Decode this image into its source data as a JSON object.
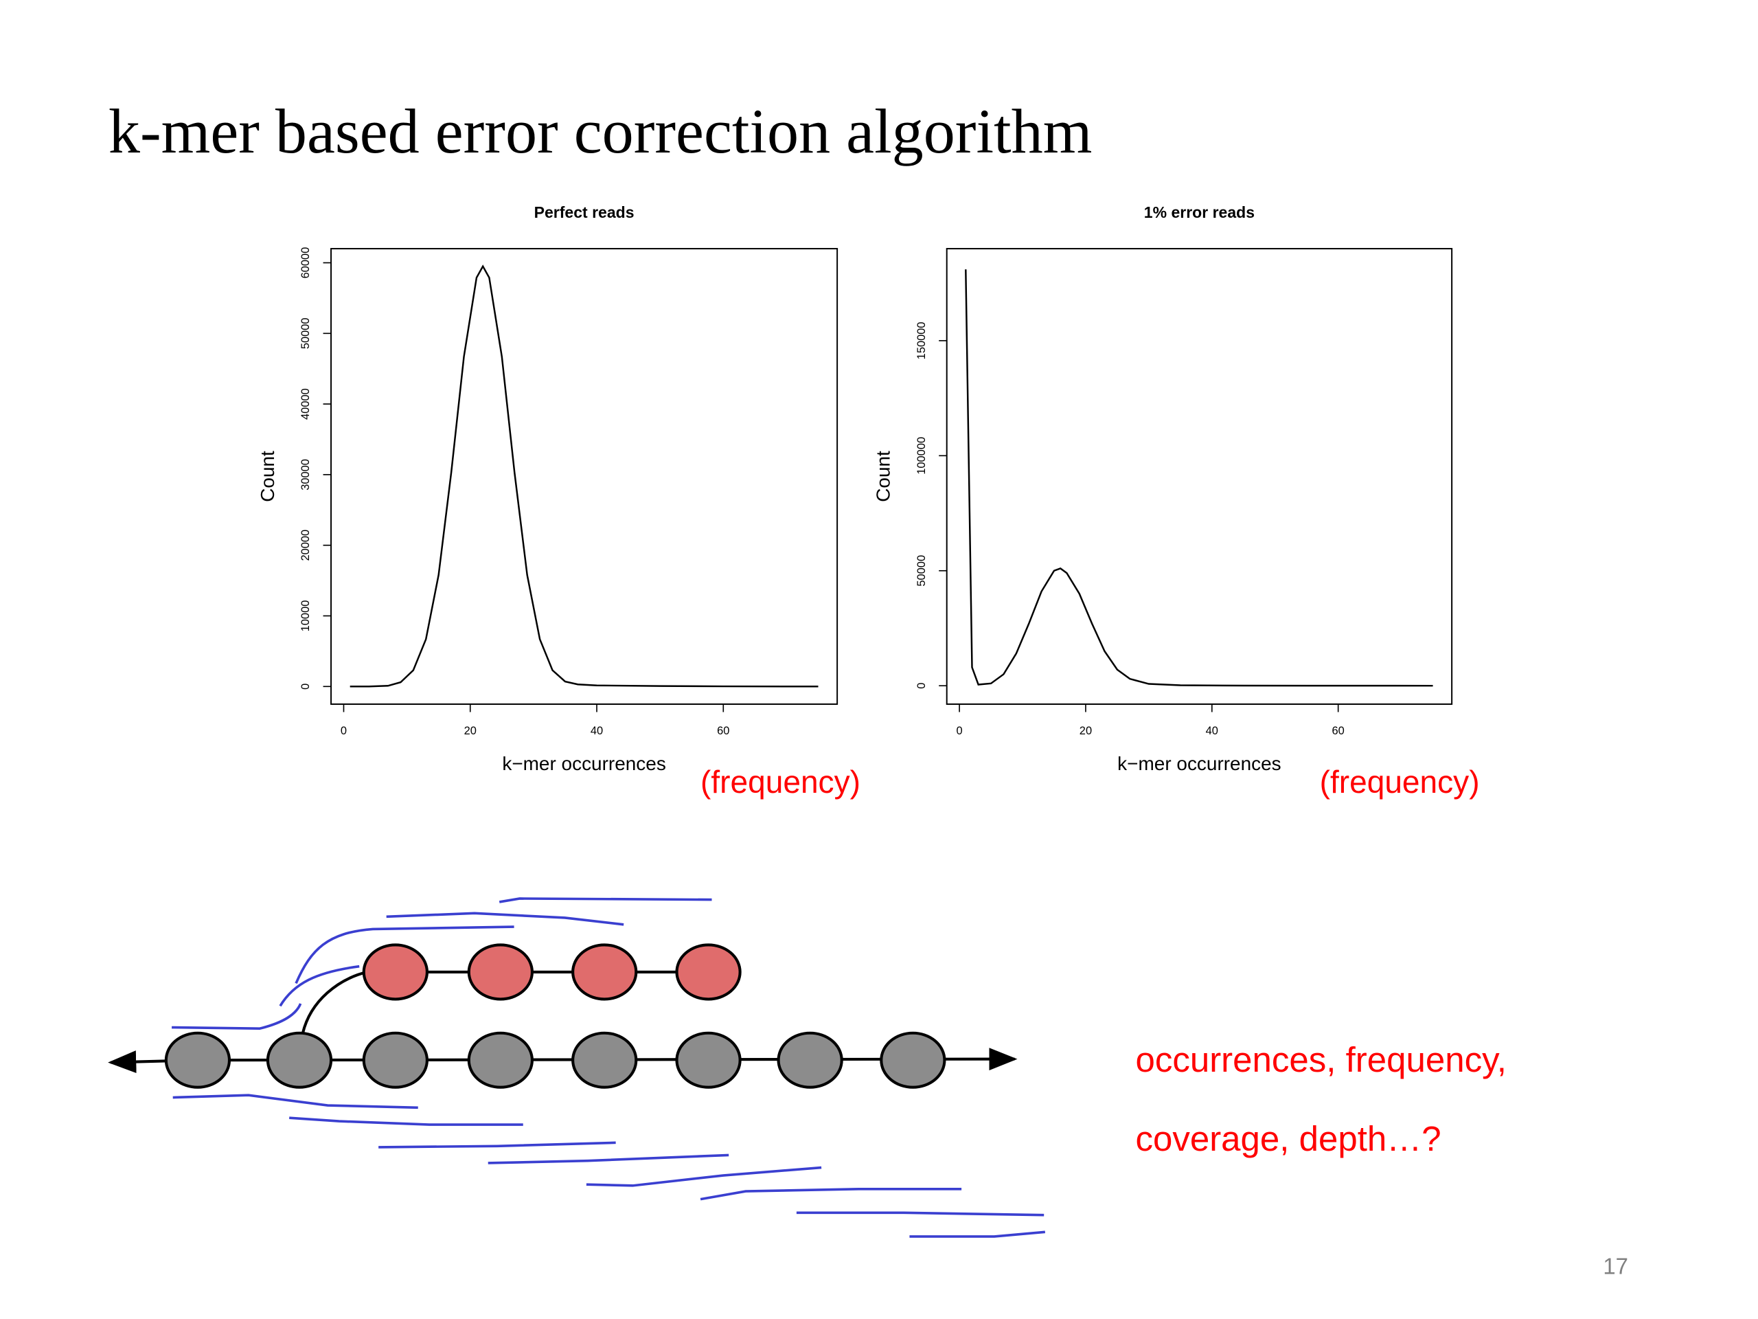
{
  "title": "k-mer based error correction algorithm",
  "chart_data": [
    {
      "type": "line",
      "title": "Perfect reads",
      "x_label": "k−mer occurrences",
      "y_label": "Count",
      "x": [
        1,
        4,
        7,
        9,
        11,
        13,
        15,
        17,
        19,
        21,
        22,
        23,
        25,
        27,
        29,
        31,
        33,
        35,
        37,
        40,
        50,
        60,
        75
      ],
      "values": [
        0,
        0,
        100,
        600,
        2300,
        6700,
        15800,
        30300,
        46700,
        57900,
        59500,
        57900,
        46700,
        30300,
        15800,
        6700,
        2300,
        700,
        300,
        150,
        60,
        20,
        0
      ],
      "color": "#000000",
      "xlim": [
        -2,
        78
      ],
      "ylim": [
        -2500,
        62000
      ],
      "xticks": [
        0,
        20,
        40,
        60
      ],
      "yticks": [
        0,
        10000,
        20000,
        30000,
        40000,
        50000,
        60000
      ]
    },
    {
      "type": "line",
      "title": "1% error reads",
      "x_label": "k−mer occurrences",
      "y_label": "Count",
      "x": [
        1,
        2,
        3,
        5,
        7,
        9,
        11,
        13,
        15,
        16,
        17,
        19,
        21,
        23,
        25,
        27,
        30,
        35,
        45,
        75
      ],
      "values": [
        181000,
        8000,
        500,
        1000,
        5000,
        14000,
        27000,
        41000,
        50000,
        51000,
        49000,
        40000,
        27000,
        15000,
        7000,
        3000,
        800,
        200,
        50,
        0
      ],
      "color": "#000000",
      "xlim": [
        -2,
        78
      ],
      "ylim": [
        -8000,
        190000
      ],
      "xticks": [
        0,
        20,
        40,
        60
      ],
      "yticks": [
        0,
        50000,
        100000,
        150000
      ]
    }
  ],
  "annotations": [
    "(frequency)",
    "(frequency)",
    "occurrences, frequency,",
    "coverage, depth…?"
  ],
  "page_number": "17"
}
